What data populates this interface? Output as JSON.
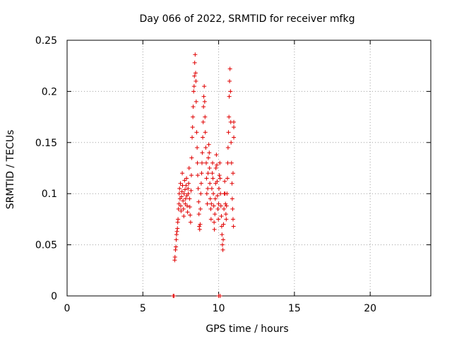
{
  "chart_data": {
    "type": "scatter",
    "title": "Day 066 of 2022, SRMTID for receiver mfkg",
    "xlabel": "GPS time / hours",
    "ylabel": "SRMTID / TECUs",
    "xlim": [
      0,
      24
    ],
    "ylim": [
      0,
      0.25
    ],
    "xticks": [
      "0",
      "5",
      "10",
      "15",
      "20"
    ],
    "yticks": [
      "0",
      "0.05",
      "0.1",
      "0.15",
      "0.2",
      "0.25"
    ],
    "xtick_values": [
      0,
      5,
      10,
      15,
      20
    ],
    "ytick_values": [
      0,
      0.05,
      0.1,
      0.15,
      0.2,
      0.25
    ],
    "grid": true,
    "marker": "+",
    "marker_color": "#e00000",
    "series": [
      {
        "name": "SRMTID",
        "points": [
          [
            7.0,
            0.0
          ],
          [
            7.05,
            0.0
          ],
          [
            10.0,
            0.0
          ],
          [
            10.1,
            0.0
          ],
          [
            7.1,
            0.035
          ],
          [
            7.12,
            0.038
          ],
          [
            7.15,
            0.045
          ],
          [
            7.18,
            0.048
          ],
          [
            7.2,
            0.055
          ],
          [
            7.22,
            0.06
          ],
          [
            7.25,
            0.063
          ],
          [
            7.28,
            0.066
          ],
          [
            7.3,
            0.072
          ],
          [
            7.32,
            0.075
          ],
          [
            7.35,
            0.085
          ],
          [
            7.38,
            0.09
          ],
          [
            7.4,
            0.1
          ],
          [
            7.42,
            0.105
          ],
          [
            7.45,
            0.095
          ],
          [
            7.48,
            0.11
          ],
          [
            7.5,
            0.088
          ],
          [
            7.52,
            0.083
          ],
          [
            7.55,
            0.097
          ],
          [
            7.58,
            0.102
          ],
          [
            7.6,
            0.12
          ],
          [
            7.62,
            0.108
          ],
          [
            7.65,
            0.093
          ],
          [
            7.68,
            0.085
          ],
          [
            7.7,
            0.078
          ],
          [
            7.72,
            0.1
          ],
          [
            7.75,
            0.113
          ],
          [
            7.78,
            0.104
          ],
          [
            7.8,
            0.09
          ],
          [
            7.82,
            0.095
          ],
          [
            7.85,
            0.108
          ],
          [
            7.88,
            0.115
          ],
          [
            7.9,
            0.098
          ],
          [
            7.92,
            0.088
          ],
          [
            7.95,
            0.082
          ],
          [
            7.98,
            0.105
          ],
          [
            8.0,
            0.1
          ],
          [
            8.02,
            0.11
          ],
          [
            8.05,
            0.125
          ],
          [
            8.08,
            0.095
          ],
          [
            8.1,
            0.087
          ],
          [
            8.12,
            0.079
          ],
          [
            8.15,
            0.072
          ],
          [
            8.18,
            0.103
          ],
          [
            8.2,
            0.118
          ],
          [
            8.22,
            0.135
          ],
          [
            8.25,
            0.155
          ],
          [
            8.28,
            0.165
          ],
          [
            8.3,
            0.175
          ],
          [
            8.32,
            0.185
          ],
          [
            8.35,
            0.2
          ],
          [
            8.38,
            0.205
          ],
          [
            8.4,
            0.215
          ],
          [
            8.42,
            0.228
          ],
          [
            8.45,
            0.236
          ],
          [
            8.48,
            0.218
          ],
          [
            8.5,
            0.21
          ],
          [
            8.52,
            0.19
          ],
          [
            8.55,
            0.16
          ],
          [
            8.58,
            0.145
          ],
          [
            8.6,
            0.13
          ],
          [
            8.62,
            0.118
          ],
          [
            8.65,
            0.105
          ],
          [
            8.68,
            0.092
          ],
          [
            8.7,
            0.08
          ],
          [
            8.72,
            0.068
          ],
          [
            8.75,
            0.065
          ],
          [
            8.78,
            0.07
          ],
          [
            8.8,
            0.085
          ],
          [
            8.82,
            0.1
          ],
          [
            8.85,
            0.11
          ],
          [
            8.88,
            0.12
          ],
          [
            8.9,
            0.13
          ],
          [
            8.92,
            0.14
          ],
          [
            8.95,
            0.155
          ],
          [
            8.98,
            0.17
          ],
          [
            9.0,
            0.185
          ],
          [
            9.02,
            0.195
          ],
          [
            9.05,
            0.205
          ],
          [
            9.08,
            0.19
          ],
          [
            9.1,
            0.175
          ],
          [
            9.12,
            0.16
          ],
          [
            9.15,
            0.145
          ],
          [
            9.18,
            0.13
          ],
          [
            9.2,
            0.115
          ],
          [
            9.22,
            0.1
          ],
          [
            9.25,
            0.09
          ],
          [
            9.28,
            0.105
          ],
          [
            9.3,
            0.12
          ],
          [
            9.32,
            0.135
          ],
          [
            9.35,
            0.148
          ],
          [
            9.38,
            0.14
          ],
          [
            9.4,
            0.125
          ],
          [
            9.42,
            0.11
          ],
          [
            9.45,
            0.095
          ],
          [
            9.48,
            0.085
          ],
          [
            9.5,
            0.075
          ],
          [
            9.52,
            0.09
          ],
          [
            9.55,
            0.105
          ],
          [
            9.58,
            0.12
          ],
          [
            9.6,
            0.13
          ],
          [
            9.62,
            0.115
          ],
          [
            9.65,
            0.1
          ],
          [
            9.68,
            0.088
          ],
          [
            9.7,
            0.072
          ],
          [
            9.72,
            0.065
          ],
          [
            9.75,
            0.08
          ],
          [
            9.78,
            0.095
          ],
          [
            9.8,
            0.11
          ],
          [
            9.82,
            0.125
          ],
          [
            9.85,
            0.138
          ],
          [
            9.88,
            0.128
          ],
          [
            9.9,
            0.112
          ],
          [
            9.92,
            0.098
          ],
          [
            9.95,
            0.085
          ],
          [
            9.98,
            0.075
          ],
          [
            10.0,
            0.09
          ],
          [
            10.02,
            0.105
          ],
          [
            10.05,
            0.118
          ],
          [
            10.08,
            0.13
          ],
          [
            10.1,
            0.115
          ],
          [
            10.12,
            0.1
          ],
          [
            10.15,
            0.088
          ],
          [
            10.18,
            0.078
          ],
          [
            10.2,
            0.068
          ],
          [
            10.22,
            0.06
          ],
          [
            10.25,
            0.05
          ],
          [
            10.28,
            0.045
          ],
          [
            10.3,
            0.055
          ],
          [
            10.32,
            0.07
          ],
          [
            10.35,
            0.085
          ],
          [
            10.38,
            0.1
          ],
          [
            10.4,
            0.112
          ],
          [
            10.42,
            0.1
          ],
          [
            10.45,
            0.09
          ],
          [
            10.48,
            0.08
          ],
          [
            10.5,
            0.075
          ],
          [
            10.52,
            0.088
          ],
          [
            10.55,
            0.1
          ],
          [
            10.58,
            0.115
          ],
          [
            10.6,
            0.13
          ],
          [
            10.62,
            0.145
          ],
          [
            10.65,
            0.16
          ],
          [
            10.68,
            0.175
          ],
          [
            10.7,
            0.195
          ],
          [
            10.72,
            0.21
          ],
          [
            10.75,
            0.222
          ],
          [
            10.78,
            0.2
          ],
          [
            10.8,
            0.17
          ],
          [
            10.82,
            0.15
          ],
          [
            10.85,
            0.13
          ],
          [
            10.88,
            0.11
          ],
          [
            10.9,
            0.095
          ],
          [
            10.92,
            0.085
          ],
          [
            10.95,
            0.075
          ],
          [
            10.98,
            0.068
          ],
          [
            11.0,
            0.165
          ],
          [
            11.0,
            0.155
          ],
          [
            11.0,
            0.17
          ],
          [
            10.95,
            0.12
          ]
        ]
      }
    ]
  }
}
